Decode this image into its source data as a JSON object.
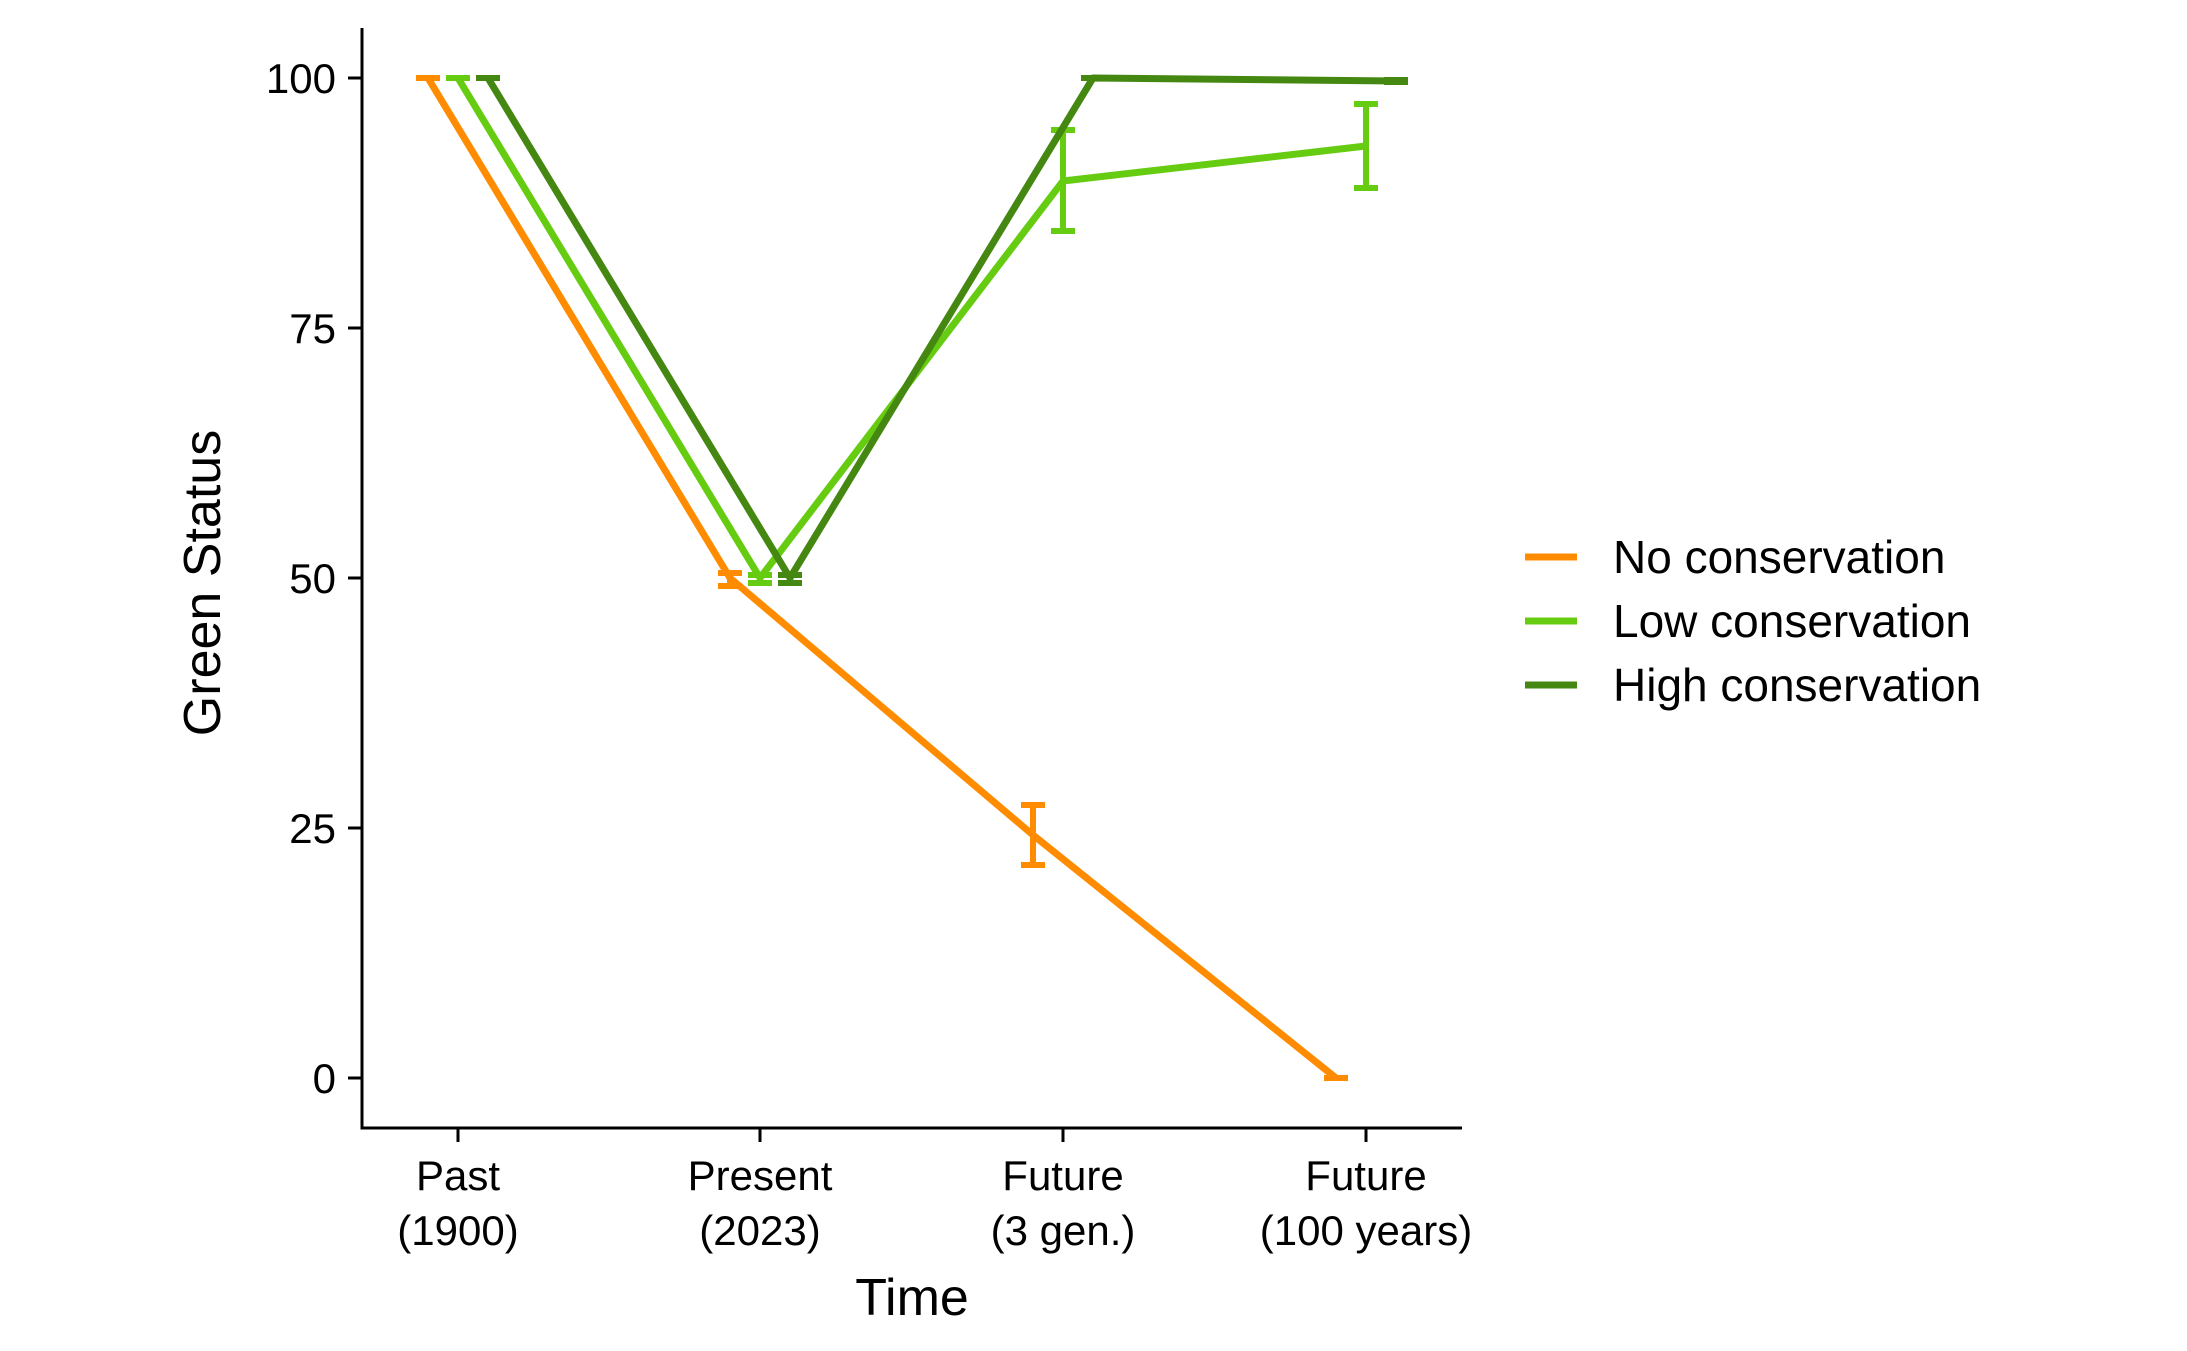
{
  "chart_data": {
    "type": "line",
    "title": "",
    "xlabel": "Time",
    "ylabel": "Green Status",
    "categories": [
      [
        "Past",
        "(1900)"
      ],
      [
        "Present",
        "(2023)"
      ],
      [
        "Future",
        "(3 gen.)"
      ],
      [
        "Future",
        "(100 years)"
      ]
    ],
    "ylim": [
      -5,
      105
    ],
    "yticks": [
      0,
      25,
      50,
      75,
      100
    ],
    "grid": false,
    "legend_position": "right",
    "series": [
      {
        "name": "No conservation",
        "color": "#ff8c00",
        "values": [
          100,
          50,
          24.3,
          0
        ],
        "err_low": [
          100,
          49.2,
          21.3,
          0
        ],
        "err_high": [
          100,
          50.5,
          27.3,
          0
        ]
      },
      {
        "name": "Low conservation",
        "color": "#66cc11",
        "values": [
          100,
          50,
          89.7,
          93.2
        ],
        "err_low": [
          100,
          49.5,
          84.7,
          89.0
        ],
        "err_high": [
          100,
          50.3,
          94.8,
          97.4
        ]
      },
      {
        "name": "High conservation",
        "color": "#448811",
        "values": [
          100,
          50,
          100,
          99.7
        ],
        "err_low": [
          100,
          49.5,
          100,
          99.6
        ],
        "err_high": [
          100,
          50.3,
          100,
          99.8
        ]
      }
    ]
  }
}
